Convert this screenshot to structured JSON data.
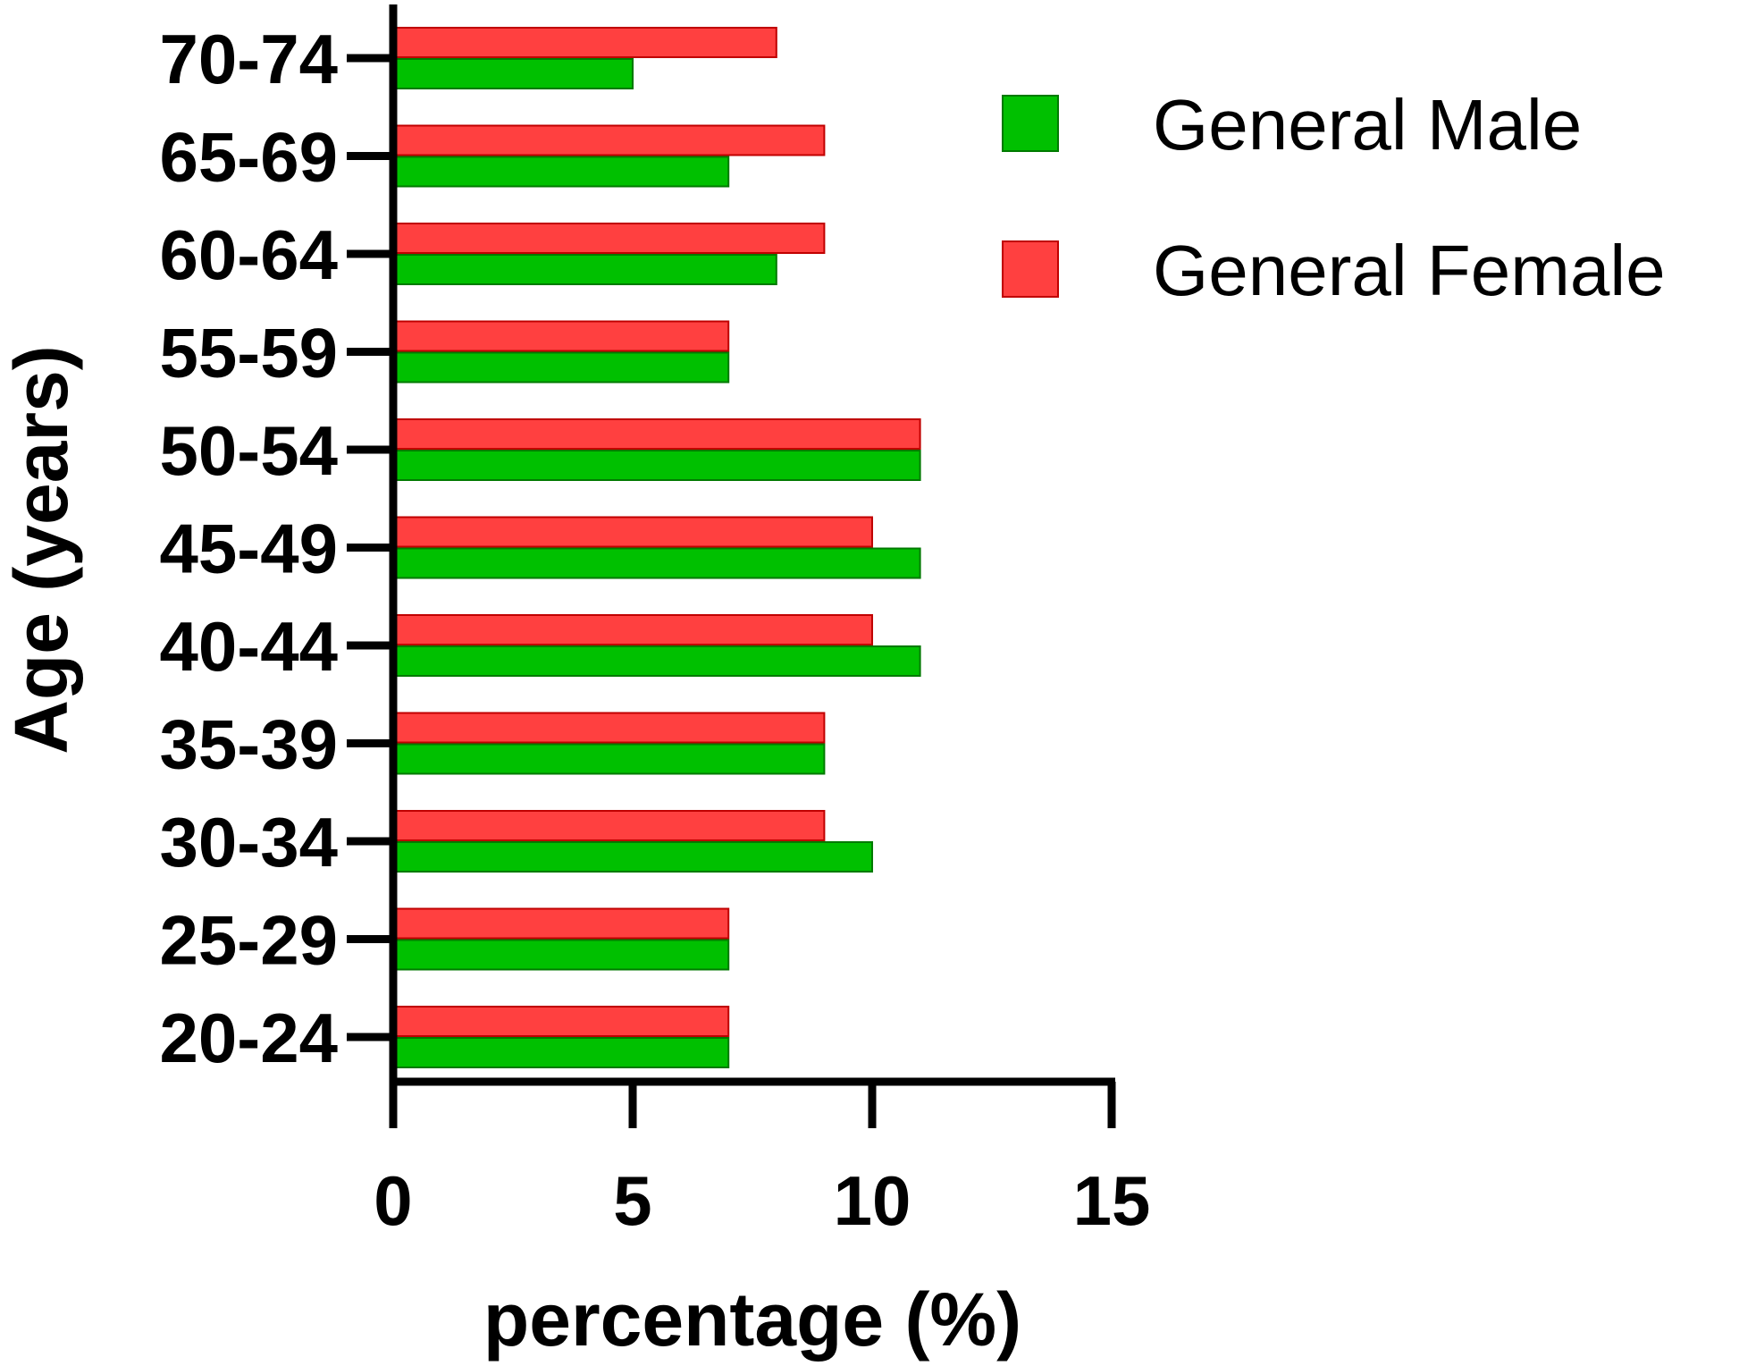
{
  "chart_data": {
    "type": "bar",
    "orientation": "horizontal",
    "xlabel": "percentage (%)",
    "ylabel": "Age (years)",
    "xlim": [
      0,
      15
    ],
    "xticks": [
      0,
      5,
      10,
      15
    ],
    "categories": [
      "20-24",
      "25-29",
      "30-34",
      "35-39",
      "40-44",
      "45-49",
      "50-54",
      "55-59",
      "60-64",
      "65-69",
      "70-74"
    ],
    "series": [
      {
        "name": "General Male",
        "color": "#00C000",
        "values": [
          7,
          7,
          10,
          9,
          11,
          11,
          11,
          7,
          8,
          7,
          5
        ]
      },
      {
        "name": "General Female",
        "color": "#FF4040",
        "values": [
          7,
          7,
          9,
          9,
          10,
          10,
          11,
          7,
          9,
          9,
          8
        ]
      }
    ],
    "legend_position": "top-right",
    "grid": false
  }
}
